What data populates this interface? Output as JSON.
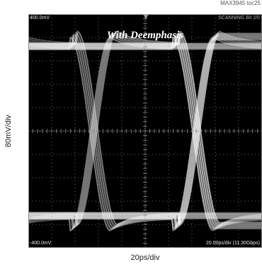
{
  "figure": {
    "toc_id": "MAX3945 toc25",
    "y_scale_label": "80mV/div",
    "x_scale_label": "20ps/div"
  },
  "scope": {
    "top_left_readout": "400.0mV",
    "bottom_left_readout": "-400.0mV",
    "top_right_readout": "SCANNING  Bit 2/0",
    "bottom_right_readout": "20.00ps/div (11.30Gbps)",
    "overlay_title": "With Deemphasis",
    "background_color": "#000000",
    "trace_color": "#ffffff",
    "graticule_color": "#8a8a8a"
  },
  "chart_data": {
    "type": "line",
    "title": "With Deemphasis",
    "xlabel": "20ps/div",
    "ylabel": "80mV/div",
    "x_unit": "ps",
    "y_unit": "mV",
    "xlim": [
      -100,
      100
    ],
    "ylim": [
      -400,
      400
    ],
    "grid": true,
    "grid_divisions": {
      "x": 10,
      "y": 10
    },
    "eye": {
      "bit_rate_gbps": 11.3,
      "crossing_times_ps": [
        -44,
        44
      ],
      "crossing_level_mv": 0,
      "upper_level_mv": 290,
      "lower_level_mv": -290,
      "deemphasis_peak_mv": 330,
      "deemphasis_trough_mv": -330
    }
  }
}
